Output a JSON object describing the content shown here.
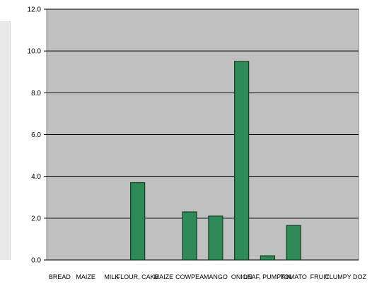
{
  "chart_data": {
    "type": "bar",
    "categories": [
      "BREAD",
      "MAIZE",
      "MILK",
      "FLOUR, CAKE",
      "MAIZE",
      "COWPEA",
      "MANGO",
      "ONION",
      "LEAF, PUMPKIN",
      "TOMATO",
      "FRUIT",
      "CLUMPY DOZ"
    ],
    "values": [
      0,
      0,
      0,
      3.7,
      0,
      2.3,
      2.1,
      9.5,
      0.2,
      1.65,
      0,
      0
    ],
    "title": "",
    "xlabel": "",
    "ylabel": "",
    "ylim": [
      0,
      12
    ],
    "yticks": [
      "0.0",
      "2.0",
      "4.0",
      "6.0",
      "8.0",
      "10.0",
      "12.0"
    ],
    "grid": true,
    "colors": {
      "plot_background": "#c0c0c0",
      "bar_fill": "#2e8b57",
      "bar_stroke": "#0f3d20",
      "gridline": "#000000"
    }
  }
}
